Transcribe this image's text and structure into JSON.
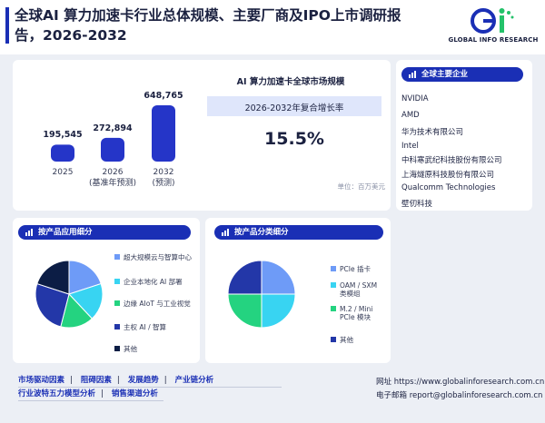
{
  "header": {
    "title": "全球AI 算力加速卡行业总体规模、主要厂商及IPO上市调研报告，2026-2032",
    "logo_text": "GLOBAL INFO RESEARCH"
  },
  "market": {
    "title": "AI 算力加速卡全球市场规模",
    "cagr_label": "2026-2032年复合增长率",
    "cagr_value": "15.5%",
    "unit": "单位：百万美元"
  },
  "chart_data": [
    {
      "type": "bar",
      "categories": [
        "2025",
        "2026",
        "2032"
      ],
      "category_sublabels": [
        "",
        "(基准年预测)",
        "(预测)"
      ],
      "values": [
        195545,
        272894,
        648765
      ],
      "value_labels": [
        "195,545",
        "272,894",
        "648,765"
      ],
      "color": "#2535c8"
    },
    {
      "type": "pie",
      "title": "按产品应用细分",
      "labels": [
        "超大规模云与智算中心",
        "企业本地化 AI 部署",
        "边缘 AIoT 与工业视觉",
        "主权 AI / 智算",
        "其他"
      ],
      "values": [
        20,
        18,
        16,
        26,
        20
      ],
      "colors": [
        "#6e9bf7",
        "#38d4f2",
        "#24d380",
        "#2337a8",
        "#0c1d45"
      ]
    },
    {
      "type": "pie",
      "title": "按产品分类细分",
      "labels": [
        "PCIe 插卡",
        "OAM / SXM 类模组",
        "M.2 / Mini PCIe 模块",
        "其他"
      ],
      "values": [
        25,
        25,
        25,
        25
      ],
      "colors": [
        "#6e9bf7",
        "#38d4f2",
        "#24d380",
        "#2337a8"
      ]
    }
  ],
  "players": {
    "title": "全球主要企业",
    "items": [
      "NVIDIA",
      "AMD",
      "华为技术有限公司",
      "Intel",
      "中科寒武纪科技股份有限公司",
      "上海燧原科技股份有限公司",
      "Qualcomm Technologies",
      "壁仞科技"
    ]
  },
  "segments": {
    "app_title": "按产品应用细分",
    "type_title": "按产品分类细分"
  },
  "bottom": {
    "links_row1": [
      "市场驱动因素",
      "阻碍因素",
      "发展趋势",
      "产业链分析"
    ],
    "links_row2": [
      "行业波特五力模型分析",
      "销售渠道分析"
    ],
    "website": "网址 https://www.globalinforesearch.com.cn",
    "email": "电子邮箱 report@globalinforesearch.com.cn"
  },
  "colors": {
    "accent": "#1a2fb5",
    "background": "#eceff5",
    "cagr_band": "#dfe6fb"
  },
  "icons": {
    "pill_icon": "bar-chart-icon"
  }
}
